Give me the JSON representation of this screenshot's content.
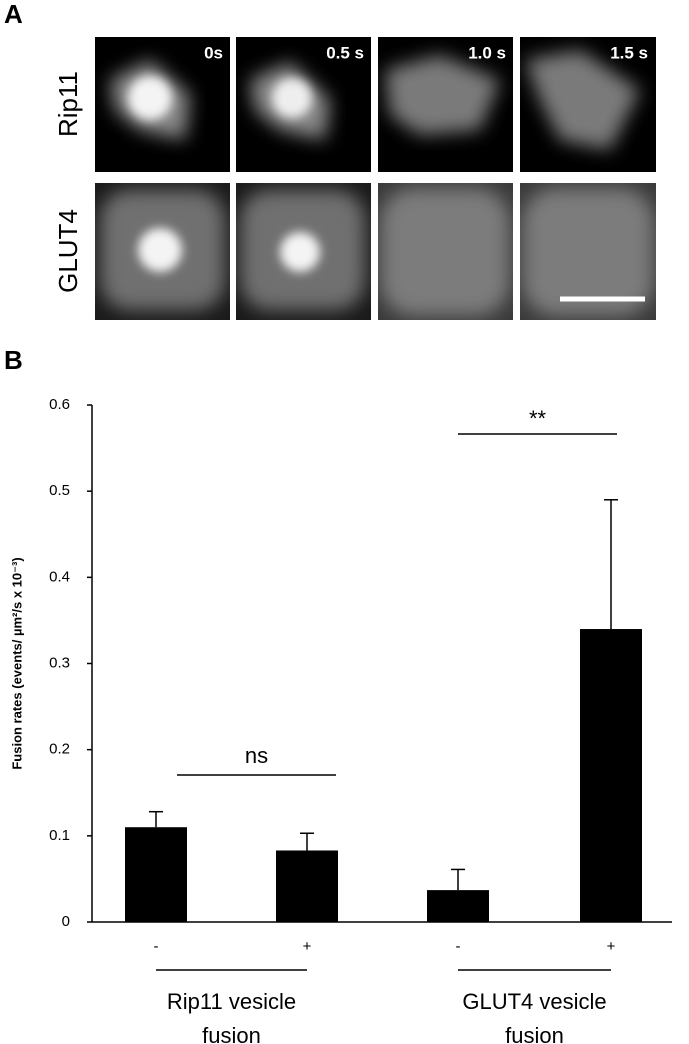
{
  "panels": {
    "a_label": "A",
    "b_label": "B"
  },
  "images": {
    "rows": [
      "Rip11",
      "GLUT4"
    ],
    "times": [
      "0s",
      "0.5 s",
      "1.0 s",
      "1.5 s"
    ]
  },
  "chart_data": {
    "type": "bar",
    "ylabel": "Fusion rates (events/ µm²/s x 10⁻³)",
    "categories": [
      "-",
      "+",
      "-",
      "+"
    ],
    "values": [
      0.11,
      0.083,
      0.037,
      0.34
    ],
    "errors": [
      0.018,
      0.02,
      0.024,
      0.15
    ],
    "color": "#000000",
    "ylim": [
      0,
      0.6
    ],
    "yticks": [
      0,
      0.1,
      0.2,
      0.3,
      0.4,
      0.5,
      0.6
    ],
    "groups": [
      {
        "lines": [
          "Rip11 vesicle",
          "fusion"
        ]
      },
      {
        "lines": [
          "GLUT4 vesicle",
          "fusion"
        ]
      }
    ],
    "annotations": [
      "ns",
      "**"
    ]
  }
}
